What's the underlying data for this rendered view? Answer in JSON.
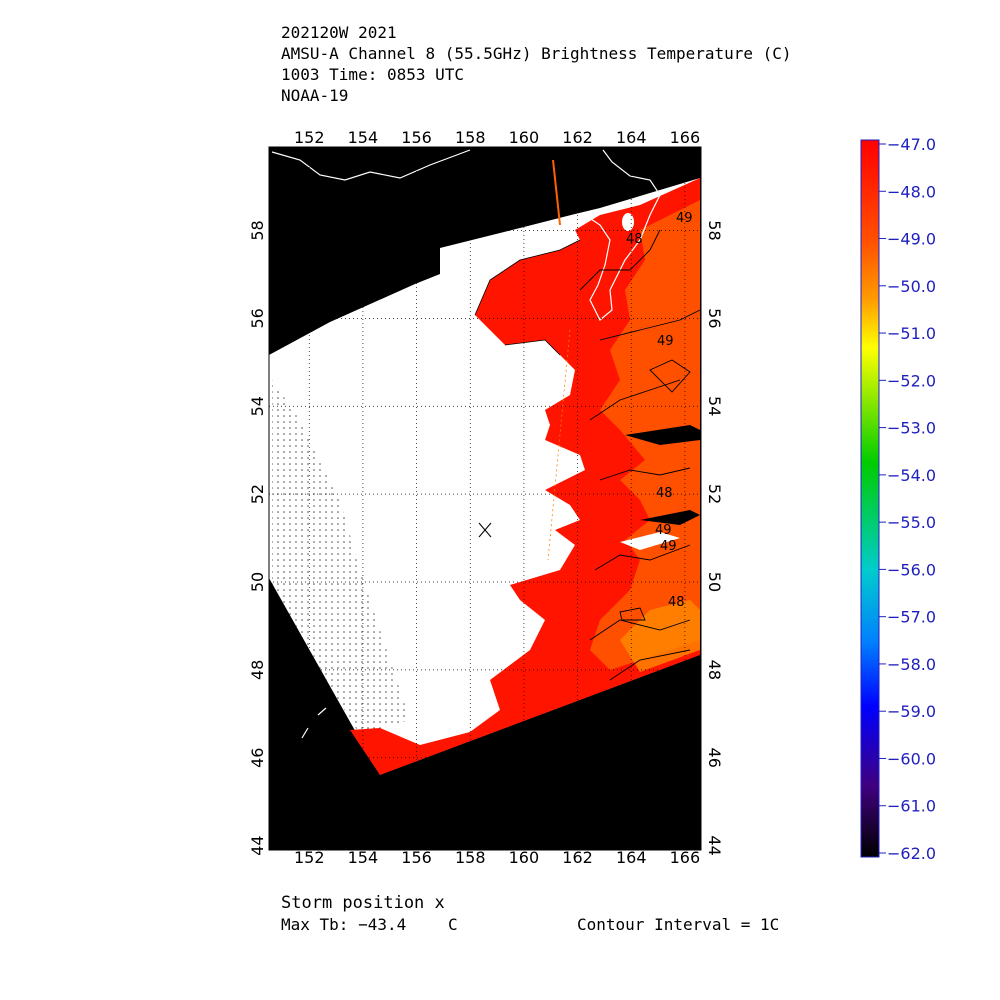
{
  "header": {
    "line1": "202120W 2021",
    "line2": "AMSU-A Channel 8 (55.5GHz) Brightness Temperature (C)",
    "line3": "1003 Time: 0853 UTC",
    "line4": "NOAA-19"
  },
  "map": {
    "lon_labels": [
      "152",
      "154",
      "156",
      "158",
      "160",
      "162",
      "164",
      "166"
    ],
    "lon_values": [
      152,
      154,
      156,
      158,
      160,
      162,
      164,
      166
    ],
    "lat_labels": [
      "44",
      "46",
      "48",
      "50",
      "52",
      "54",
      "56",
      "58"
    ],
    "lat_values": [
      44,
      46,
      48,
      50,
      52,
      54,
      56,
      58
    ],
    "lon_range": [
      150.5,
      166.6
    ],
    "lat_range": [
      43.9,
      59.9
    ],
    "contour_labels": [
      "48",
      "49",
      "49",
      "48",
      "49",
      "49",
      "48"
    ],
    "storm_marker": "x",
    "colors": {
      "no_data": "#000000",
      "warm_red": "#ff1400",
      "orange": "#ff5000",
      "orange_light": "#ff8a00",
      "coastline": "#ffffff",
      "grid": "#000000"
    }
  },
  "colorbar": {
    "labels": [
      "−47.0",
      "−48.0",
      "−49.0",
      "−50.0",
      "−51.0",
      "−52.0",
      "−53.0",
      "−54.0",
      "−55.0",
      "−56.0",
      "−57.0",
      "−58.0",
      "−59.0",
      "−60.0",
      "−61.0",
      "−62.0"
    ],
    "values": [
      -47,
      -48,
      -49,
      -50,
      -51,
      -52,
      -53,
      -54,
      -55,
      -56,
      -57,
      -58,
      -59,
      -60,
      -61,
      -62
    ],
    "range": [
      -62,
      -47
    ],
    "stops": [
      "#ff0000",
      "#ff5000",
      "#ff9900",
      "#ffff00",
      "#00cc00",
      "#00cccc",
      "#0080ff",
      "#0000ff",
      "#400080",
      "#000000"
    ]
  },
  "footer": {
    "storm": "Storm position x",
    "maxtb": "Max Tb: −43.4",
    "maxtb_unit": "C",
    "contour": "Contour Interval = 1C"
  }
}
